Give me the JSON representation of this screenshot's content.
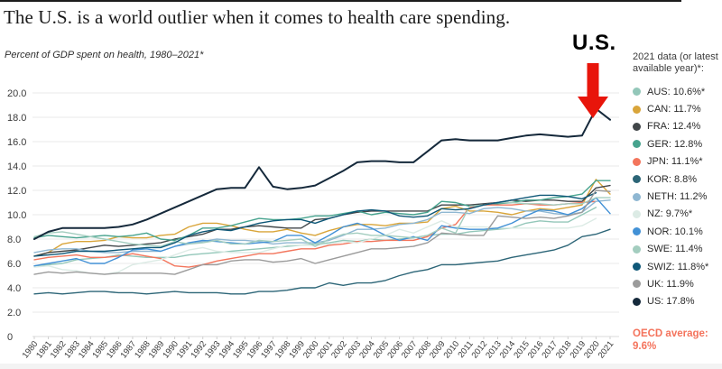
{
  "page": {
    "title": "The U.S. is a world outlier when it comes to health care spending.",
    "subtitle": "Percent of GDP spent on health, 1980–2021*"
  },
  "annotation": {
    "us_label": "U.S.",
    "arrow_color": "#e8150b"
  },
  "legend": {
    "title": "2021 data (or latest available year)*:",
    "items": [
      {
        "label": "AUS: 10.6%*",
        "color": "#93c7b9"
      },
      {
        "label": "CAN: 11.7%",
        "color": "#d9a53a"
      },
      {
        "label": "FRA: 12.4%",
        "color": "#414649"
      },
      {
        "label": "GER: 12.8%",
        "color": "#47a38e"
      },
      {
        "label": "JPN: 11.1%*",
        "color": "#f3755c"
      },
      {
        "label": "KOR: 8.8%",
        "color": "#2c6577"
      },
      {
        "label": "NETH: 11.2%",
        "color": "#8fb7d2"
      },
      {
        "label": "NZ: 9.7%*",
        "color": "#dcebe5"
      },
      {
        "label": "NOR: 10.1%",
        "color": "#4291d6"
      },
      {
        "label": "SWE: 11.4%",
        "color": "#a3cdbf"
      },
      {
        "label": "SWIZ: 11.8%*",
        "color": "#0f5878"
      },
      {
        "label": "UK: 11.9%",
        "color": "#9b9b9b"
      },
      {
        "label": "US: 17.8%",
        "color": "#15293b"
      }
    ]
  },
  "oecd_note": {
    "line1": "OECD average:",
    "line2": "9.6%",
    "color": "#f4735c"
  },
  "chart_data": {
    "type": "line",
    "title": "The U.S. is a world outlier when it comes to health care spending.",
    "subtitle": "Percent of GDP spent on health, 1980–2021*",
    "xlabel": "",
    "ylabel": "",
    "ylim": [
      0,
      20
    ],
    "grid": true,
    "legend_position": "right",
    "yticks": [
      "20.0",
      "18.0",
      "16.0",
      "14.0",
      "12.0",
      "10.0",
      "8.0",
      "6.0",
      "4.0",
      "2.0",
      "0"
    ],
    "x": [
      1980,
      1981,
      1982,
      1983,
      1984,
      1985,
      1986,
      1987,
      1988,
      1989,
      1990,
      1991,
      1992,
      1993,
      1994,
      1995,
      1996,
      1997,
      1998,
      1999,
      2000,
      2001,
      2002,
      2003,
      2004,
      2005,
      2006,
      2007,
      2008,
      2009,
      2010,
      2011,
      2012,
      2013,
      2014,
      2015,
      2016,
      2017,
      2018,
      2019,
      2020,
      2021
    ],
    "series": [
      {
        "name": "AUS",
        "color": "#93c7b9",
        "values": [
          5.8,
          5.9,
          6.0,
          6.3,
          6.4,
          6.5,
          6.7,
          6.6,
          6.5,
          6.5,
          6.5,
          6.7,
          6.8,
          6.9,
          7.0,
          7.1,
          7.2,
          7.3,
          7.4,
          7.5,
          7.6,
          7.7,
          7.9,
          7.8,
          8.0,
          7.9,
          8.0,
          8.1,
          8.3,
          8.4,
          8.4,
          8.6,
          8.7,
          8.8,
          8.9,
          9.3,
          9.5,
          9.4,
          9.4,
          10.0,
          10.6,
          null
        ]
      },
      {
        "name": "CAN",
        "color": "#d9a53a",
        "values": [
          6.6,
          6.9,
          7.6,
          7.8,
          7.8,
          7.9,
          8.2,
          8.1,
          8.1,
          8.3,
          8.4,
          9.0,
          9.3,
          9.3,
          9.1,
          8.8,
          8.6,
          8.6,
          8.8,
          8.5,
          8.3,
          8.7,
          9.0,
          9.2,
          9.2,
          9.1,
          9.3,
          9.3,
          9.4,
          10.5,
          10.7,
          10.3,
          10.3,
          10.2,
          10.0,
          10.3,
          10.5,
          10.4,
          10.6,
          10.8,
          12.9,
          11.7
        ]
      },
      {
        "name": "FRA",
        "color": "#414649",
        "values": [
          6.6,
          6.9,
          7.0,
          7.1,
          7.3,
          7.5,
          7.4,
          7.5,
          7.6,
          7.7,
          8.0,
          8.2,
          8.4,
          8.8,
          8.8,
          9.0,
          9.1,
          9.0,
          8.9,
          8.9,
          9.6,
          9.7,
          10.0,
          10.2,
          10.3,
          10.3,
          10.3,
          10.3,
          10.3,
          10.8,
          10.8,
          10.8,
          10.9,
          11.0,
          11.2,
          11.1,
          11.2,
          11.2,
          11.1,
          11.1,
          12.2,
          12.4
        ]
      },
      {
        "name": "GER",
        "color": "#47a38e",
        "values": [
          8.1,
          8.3,
          8.2,
          8.1,
          8.2,
          8.3,
          8.2,
          8.3,
          8.5,
          8.0,
          7.9,
          8.3,
          8.9,
          8.9,
          9.1,
          9.4,
          9.7,
          9.6,
          9.6,
          9.7,
          9.9,
          9.9,
          10.1,
          10.3,
          10.0,
          10.2,
          10.1,
          10.0,
          10.2,
          11.1,
          11.0,
          10.7,
          10.8,
          10.9,
          11.0,
          11.2,
          11.2,
          11.4,
          11.5,
          11.7,
          12.8,
          12.8
        ]
      },
      {
        "name": "JPN",
        "color": "#f3755c",
        "values": [
          6.3,
          6.5,
          6.6,
          6.7,
          6.5,
          6.5,
          6.6,
          6.8,
          6.6,
          6.4,
          5.8,
          5.7,
          5.9,
          6.2,
          6.4,
          6.6,
          6.8,
          6.8,
          7.0,
          7.2,
          7.2,
          7.5,
          7.6,
          7.8,
          7.8,
          7.9,
          7.9,
          7.9,
          8.2,
          8.9,
          9.2,
          10.6,
          10.8,
          10.8,
          10.8,
          10.9,
          10.8,
          10.8,
          10.9,
          11.0,
          11.1,
          null
        ]
      },
      {
        "name": "KOR",
        "color": "#2c6577",
        "values": [
          3.5,
          3.6,
          3.5,
          3.6,
          3.7,
          3.7,
          3.6,
          3.6,
          3.5,
          3.6,
          3.7,
          3.6,
          3.6,
          3.6,
          3.5,
          3.5,
          3.7,
          3.7,
          3.8,
          4.0,
          4.0,
          4.4,
          4.2,
          4.4,
          4.4,
          4.6,
          5.0,
          5.3,
          5.5,
          5.9,
          5.9,
          6.0,
          6.1,
          6.2,
          6.5,
          6.7,
          6.9,
          7.1,
          7.5,
          8.2,
          8.4,
          8.8
        ]
      },
      {
        "name": "NETH",
        "color": "#8fb7d2",
        "values": [
          6.9,
          7.1,
          7.2,
          7.2,
          7.0,
          6.9,
          6.9,
          7.0,
          7.0,
          7.0,
          7.4,
          7.6,
          7.8,
          8.0,
          7.9,
          7.9,
          7.8,
          7.6,
          7.7,
          7.7,
          7.7,
          7.9,
          8.3,
          8.8,
          8.8,
          8.9,
          9.2,
          9.3,
          9.6,
          10.2,
          10.2,
          10.1,
          10.5,
          10.6,
          10.5,
          10.3,
          10.3,
          10.1,
          10.0,
          10.2,
          11.1,
          11.2
        ]
      },
      {
        "name": "NZ",
        "color": "#dcebe5",
        "values": [
          5.7,
          5.8,
          5.5,
          5.4,
          5.2,
          5.1,
          5.3,
          5.9,
          6.1,
          6.3,
          6.7,
          7.1,
          7.3,
          7.0,
          6.9,
          6.9,
          6.9,
          7.2,
          7.5,
          7.5,
          7.5,
          7.6,
          7.8,
          7.7,
          8.0,
          8.3,
          8.8,
          8.5,
          9.0,
          9.5,
          9.0,
          9.0,
          9.0,
          8.9,
          8.9,
          8.9,
          8.9,
          8.9,
          8.9,
          9.1,
          9.7,
          null
        ]
      },
      {
        "name": "NOR",
        "color": "#4291d6",
        "values": [
          5.8,
          6.0,
          6.2,
          6.4,
          6.0,
          6.0,
          6.5,
          7.1,
          7.2,
          7.0,
          7.4,
          7.7,
          7.9,
          7.8,
          7.7,
          7.6,
          7.7,
          7.8,
          8.3,
          8.3,
          7.7,
          8.3,
          9.0,
          9.3,
          8.9,
          8.3,
          7.9,
          8.2,
          7.9,
          9.1,
          8.9,
          8.8,
          8.8,
          8.9,
          9.3,
          9.9,
          10.4,
          10.3,
          10.0,
          10.5,
          11.4,
          10.1
        ]
      },
      {
        "name": "SWE",
        "color": "#a3cdbf",
        "values": [
          8.2,
          8.5,
          8.6,
          8.4,
          8.2,
          8.0,
          7.8,
          7.6,
          7.5,
          7.4,
          7.8,
          7.6,
          7.7,
          7.9,
          7.6,
          7.6,
          7.9,
          7.8,
          7.9,
          8.0,
          7.4,
          8.0,
          8.4,
          8.5,
          8.3,
          8.3,
          8.2,
          8.1,
          8.3,
          8.9,
          8.5,
          10.7,
          10.8,
          11.0,
          11.0,
          10.9,
          10.9,
          10.8,
          10.9,
          10.9,
          11.4,
          11.4
        ]
      },
      {
        "name": "SWIZ",
        "color": "#0f5878",
        "values": [
          6.6,
          6.7,
          6.8,
          7.0,
          7.0,
          7.0,
          7.1,
          7.2,
          7.3,
          7.3,
          7.7,
          8.3,
          8.6,
          8.8,
          8.7,
          9.0,
          9.3,
          9.5,
          9.6,
          9.6,
          9.3,
          9.7,
          10.0,
          10.3,
          10.4,
          10.3,
          9.9,
          9.8,
          9.9,
          10.5,
          10.4,
          10.5,
          10.8,
          11.0,
          11.2,
          11.4,
          11.6,
          11.6,
          11.5,
          11.3,
          11.8,
          null
        ]
      },
      {
        "name": "UK",
        "color": "#9b9b9b",
        "values": [
          5.1,
          5.3,
          5.2,
          5.3,
          5.2,
          5.1,
          5.2,
          5.2,
          5.2,
          5.2,
          5.1,
          5.5,
          5.9,
          5.9,
          6.2,
          6.3,
          6.3,
          6.1,
          6.2,
          6.4,
          6.0,
          6.3,
          6.6,
          6.9,
          7.2,
          7.2,
          7.3,
          7.4,
          7.7,
          8.5,
          8.4,
          8.3,
          8.3,
          9.9,
          9.8,
          9.7,
          9.8,
          9.7,
          9.9,
          10.2,
          12.0,
          11.9
        ]
      },
      {
        "name": "US",
        "color": "#15293b",
        "values": [
          8.0,
          8.6,
          8.9,
          8.9,
          8.9,
          8.9,
          9.0,
          9.2,
          9.6,
          10.1,
          10.6,
          11.1,
          11.6,
          12.1,
          12.2,
          12.2,
          13.9,
          12.3,
          12.1,
          12.2,
          12.4,
          13.0,
          13.6,
          14.3,
          14.4,
          14.4,
          14.3,
          14.3,
          15.2,
          16.1,
          16.2,
          16.1,
          16.1,
          16.1,
          16.3,
          16.5,
          16.6,
          16.5,
          16.4,
          16.5,
          18.7,
          17.8
        ]
      }
    ]
  }
}
